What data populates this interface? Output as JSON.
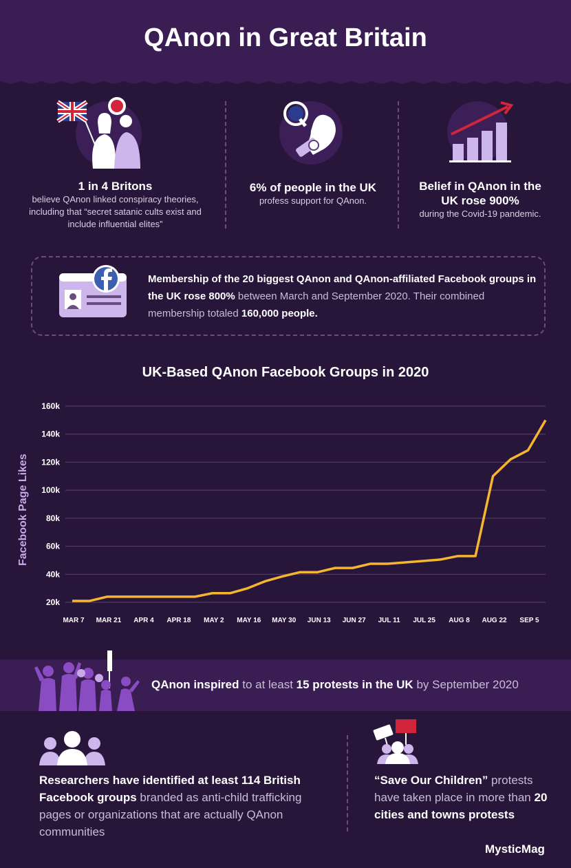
{
  "header": {
    "title": "QAnon in Great Britain"
  },
  "stats": [
    {
      "title": "1 in 4 Britons",
      "body": "believe QAnon linked conspiracy theories, including that “secret satanic cults exist and include influential elites”",
      "icon": "uk-flag-people-icon"
    },
    {
      "title": "6% of people in the UK",
      "body": "profess support for QAnon.",
      "icon": "q-hand-icon"
    },
    {
      "title": "Belief in QAnon in the UK rose 900%",
      "body": "during the Covid-19 pandemic.",
      "icon": "rising-bar-chart-icon"
    }
  ],
  "facebook_box": {
    "icon": "facebook-id-card-icon",
    "bold_1": "Membership of the 20 biggest QAnon and QAnon-affiliated Facebook groups in the UK rose 800%",
    "text_1": " between March and September 2020. Their combined membership totaled ",
    "bold_2": "160,000 people."
  },
  "chart_data": {
    "type": "line",
    "title": "UK-Based QAnon Facebook Groups in 2020",
    "ylabel": "Facebook Page Likes",
    "xlabel": "",
    "ylim": [
      20000,
      160000
    ],
    "y_ticks": [
      "20k",
      "40k",
      "60k",
      "80k",
      "100k",
      "120k",
      "140k",
      "160k"
    ],
    "x_ticks": [
      "MAR 7",
      "MAR 21",
      "APR 4",
      "APR 18",
      "MAY 2",
      "MAY 16",
      "MAY 30",
      "JUN 13",
      "JUN 27",
      "JUL 11",
      "JUL 25",
      "AUG 8",
      "AUG 22",
      "SEP 5"
    ],
    "grid": true,
    "line_color": "#f5b52e",
    "series": [
      {
        "x": [
          "2020-03-07",
          "2020-03-14",
          "2020-03-21",
          "2020-03-28",
          "2020-04-04",
          "2020-04-11",
          "2020-04-18",
          "2020-04-25",
          "2020-05-02",
          "2020-05-09",
          "2020-05-16",
          "2020-05-23",
          "2020-05-30",
          "2020-06-06",
          "2020-06-13",
          "2020-06-20",
          "2020-06-27",
          "2020-07-04",
          "2020-07-11",
          "2020-07-18",
          "2020-07-25",
          "2020-08-01",
          "2020-08-08",
          "2020-08-15",
          "2020-08-22",
          "2020-08-29",
          "2020-09-05",
          "2020-09-12"
        ],
        "values": [
          21000,
          21000,
          24000,
          24000,
          24000,
          24000,
          24000,
          24000,
          26500,
          26500,
          30000,
          35000,
          38500,
          41500,
          41500,
          44500,
          44500,
          47500,
          47500,
          48500,
          49500,
          50500,
          53000,
          53000,
          110000,
          122000,
          128500,
          150000
        ]
      }
    ]
  },
  "banner": {
    "icon": "protest-crowd-icon",
    "bold_1": "QAnon inspired",
    "text_1": " to at least ",
    "bold_2": "15 protests in the UK",
    "text_2": " by September 2020"
  },
  "bottom_left": {
    "icon": "group-people-icon",
    "bold": "Researchers have identified at least 114 British Facebook groups",
    "text": " branded as anti-child trafficking pages or organizations that are actually QAnon communities"
  },
  "bottom_right": {
    "icon": "protest-signs-icon",
    "bold_1": "“Save Our Children”",
    "text_1": " protests have taken place in more than ",
    "bold_2": "20 cities and towns protests"
  },
  "logo": "MysticMag",
  "colors": {
    "background": "#28153a",
    "panel": "#3a1d52",
    "accent": "#f5b52e",
    "lavender": "#c9a9e8"
  }
}
